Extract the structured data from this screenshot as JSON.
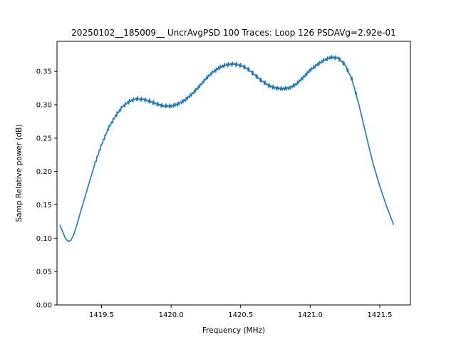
{
  "chart_data": {
    "type": "line",
    "title": "20250102__185009__  UncrAvgPSD 100 Traces: Loop 126 PSDAVg=2.92e-01",
    "xlabel": "Frequency (MHz)",
    "ylabel": "Samp Relative power (dB)",
    "xlim": [
      1419.18,
      1421.72
    ],
    "ylim": [
      0.0,
      0.395
    ],
    "x_ticks": [
      1419.5,
      1420.0,
      1420.5,
      1421.0,
      1421.5
    ],
    "x_tick_labels": [
      "1419.5",
      "1420.0",
      "1420.5",
      "1421.0",
      "1421.5"
    ],
    "y_ticks": [
      0.0,
      0.05,
      0.1,
      0.15,
      0.2,
      0.25,
      0.3,
      0.35
    ],
    "y_tick_labels": [
      "0.00",
      "0.05",
      "0.10",
      "0.15",
      "0.20",
      "0.25",
      "0.30",
      "0.35"
    ],
    "grid": false,
    "legend": "none",
    "series": [
      {
        "color": "#1f77b4",
        "x": [
          1419.2,
          1419.22,
          1419.24,
          1419.26,
          1419.28,
          1419.3,
          1419.32,
          1419.35,
          1419.4,
          1419.45,
          1419.5,
          1419.55,
          1419.6,
          1419.65,
          1419.7,
          1419.75,
          1419.8,
          1419.85,
          1419.9,
          1419.95,
          1420.0,
          1420.05,
          1420.1,
          1420.15,
          1420.2,
          1420.25,
          1420.3,
          1420.35,
          1420.4,
          1420.45,
          1420.5,
          1420.55,
          1420.6,
          1420.65,
          1420.7,
          1420.75,
          1420.8,
          1420.85,
          1420.9,
          1420.95,
          1421.0,
          1421.05,
          1421.1,
          1421.15,
          1421.2,
          1421.25,
          1421.3,
          1421.35,
          1421.4,
          1421.45,
          1421.5,
          1421.55,
          1421.6
        ],
        "y": [
          0.12,
          0.11,
          0.1,
          0.095,
          0.097,
          0.105,
          0.118,
          0.14,
          0.175,
          0.21,
          0.24,
          0.265,
          0.283,
          0.297,
          0.305,
          0.309,
          0.308,
          0.305,
          0.301,
          0.298,
          0.298,
          0.301,
          0.307,
          0.316,
          0.327,
          0.339,
          0.349,
          0.356,
          0.36,
          0.361,
          0.359,
          0.354,
          0.345,
          0.336,
          0.329,
          0.325,
          0.324,
          0.325,
          0.331,
          0.341,
          0.352,
          0.36,
          0.367,
          0.371,
          0.37,
          0.36,
          0.338,
          0.3,
          0.256,
          0.213,
          0.178,
          0.147,
          0.12
        ]
      }
    ]
  }
}
